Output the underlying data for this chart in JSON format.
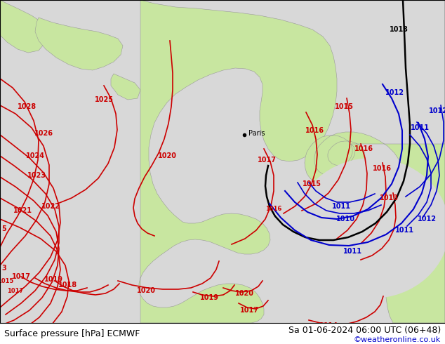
{
  "title_left": "Surface pressure [hPa] ECMWF",
  "title_right": "Sa 01-06-2024 06:00 UTC (06+48)",
  "credit": "©weatheronline.co.uk",
  "credit_color": "#0000cc",
  "bg_sea": "#d8d8d8",
  "bg_land": "#c8e6a0",
  "isobar_red": "#cc0000",
  "isobar_blue": "#0000cc",
  "isobar_black": "#000000",
  "fig_width": 6.34,
  "fig_height": 4.9,
  "dpi": 100
}
